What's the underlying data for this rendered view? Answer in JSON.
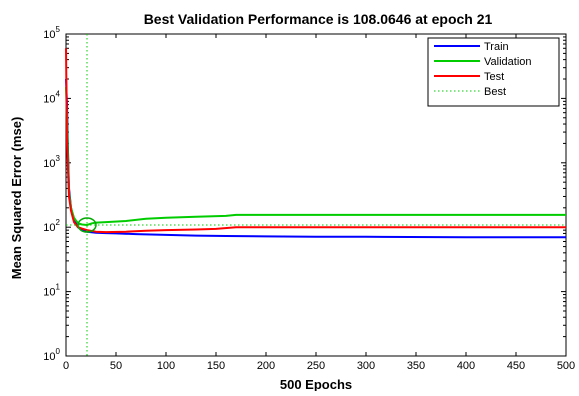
{
  "chart_data": {
    "type": "line",
    "title": "Best Validation Performance is 108.0646 at epoch 21",
    "xlabel": "500 Epochs",
    "ylabel": "Mean Squared Error  (mse)",
    "xlim": [
      0,
      500
    ],
    "ylim_log10": [
      0,
      5
    ],
    "y_scale": "log",
    "grid": false,
    "legend_position": "top-right",
    "x_ticks": [
      0,
      50,
      100,
      150,
      200,
      250,
      300,
      350,
      400,
      450,
      500
    ],
    "x_tick_labels": [
      "0",
      "50",
      "100",
      "150",
      "200",
      "250",
      "300",
      "350",
      "400",
      "450",
      "500"
    ],
    "y_ticks": [
      {
        "base": "10",
        "exp": "0",
        "value": 1
      },
      {
        "base": "10",
        "exp": "1",
        "value": 10
      },
      {
        "base": "10",
        "exp": "2",
        "value": 100
      },
      {
        "base": "10",
        "exp": "3",
        "value": 1000
      },
      {
        "base": "10",
        "exp": "4",
        "value": 10000
      },
      {
        "base": "10",
        "exp": "5",
        "value": 100000
      }
    ],
    "series": [
      {
        "name": "Train",
        "color": "#0000ff",
        "style": "solid",
        "x": [
          0,
          1,
          2,
          3,
          5,
          8,
          12,
          16,
          21,
          30,
          40,
          50,
          70,
          100,
          130,
          160,
          200,
          250,
          300,
          400,
          500
        ],
        "y": [
          20000,
          8000,
          1500,
          400,
          200,
          130,
          100,
          90,
          85,
          82,
          81,
          80,
          78,
          76,
          74,
          73,
          72,
          71,
          71,
          70,
          70
        ]
      },
      {
        "name": "Validation",
        "color": "#00cc00",
        "style": "solid",
        "x": [
          0,
          1,
          2,
          3,
          5,
          8,
          12,
          16,
          21,
          26,
          30,
          40,
          60,
          80,
          100,
          130,
          160,
          170,
          200,
          300,
          400,
          500
        ],
        "y": [
          15000,
          5000,
          1200,
          350,
          200,
          140,
          115,
          110,
          108.0646,
          115,
          118,
          120,
          125,
          135,
          140,
          145,
          150,
          155,
          155,
          155,
          155,
          155
        ]
      },
      {
        "name": "Test",
        "color": "#ff0000",
        "style": "solid",
        "x": [
          0,
          1,
          2,
          3,
          5,
          8,
          12,
          16,
          21,
          30,
          40,
          60,
          80,
          100,
          130,
          150,
          170,
          200,
          280,
          400,
          500
        ],
        "y": [
          60000,
          2000,
          800,
          300,
          180,
          120,
          100,
          95,
          90,
          85,
          84,
          85,
          88,
          90,
          92,
          94,
          100,
          100,
          100,
          100,
          100
        ]
      },
      {
        "name": "Best",
        "color": "#00cc00",
        "style": "dotted",
        "vertical_x": 21,
        "horizontal_y": 108.0646
      }
    ],
    "best_marker": {
      "x": 21,
      "y": 108.0646,
      "color": "#00aa00"
    }
  }
}
